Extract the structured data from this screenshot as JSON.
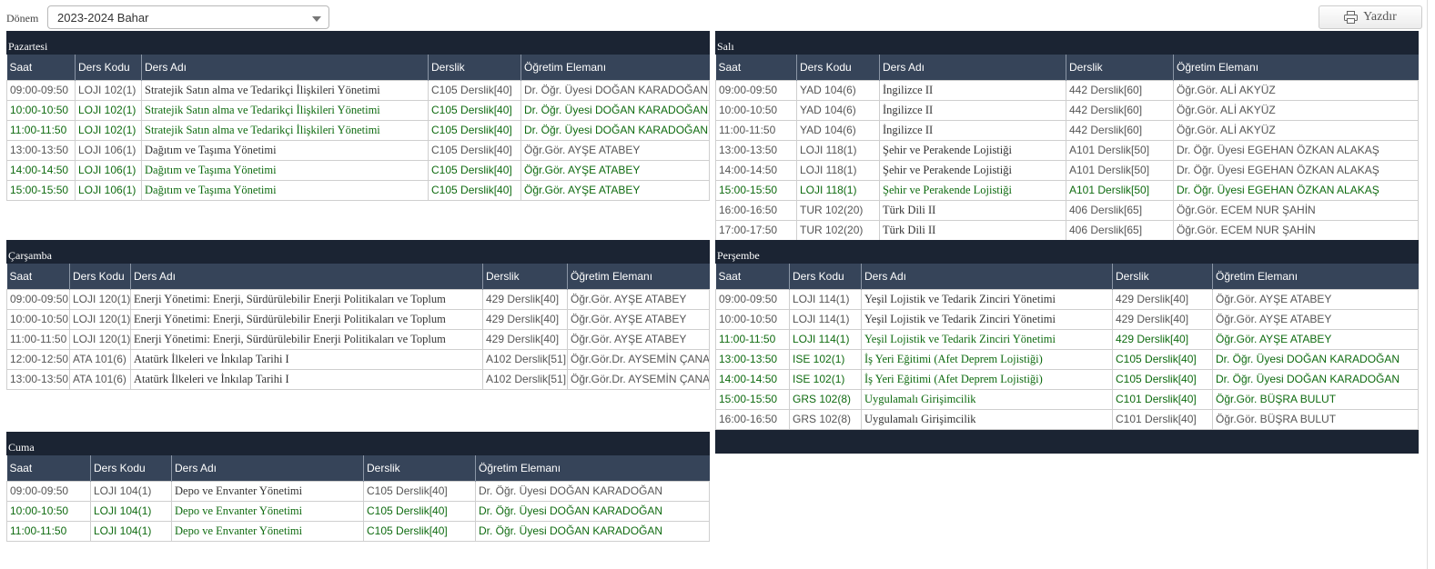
{
  "toolbar": {
    "donem_label": "Dönem",
    "donem_value": "2023-2024 Bahar",
    "print_label": "Yazdır",
    "print_icon": "printer-icon"
  },
  "columns": [
    "Saat",
    "Ders Kodu",
    "Ders Adı",
    "Derslik",
    "Öğretim Elemanı"
  ],
  "colors": {
    "header_dark": "#1b2433",
    "header": "#364459",
    "active_text": "#0f6b10"
  },
  "days": {
    "pazartesi": {
      "title": "Pazartesi",
      "rows": [
        {
          "saat": "09:00-09:50",
          "kod": "LOJI 102(1)",
          "ad": "Stratejik Satın alma ve Tedarikçi İlişkileri Yönetimi",
          "derslik": "C105 Derslik[40]",
          "ogretim": "Dr. Öğr. Üyesi DOĞAN KARADOĞAN",
          "active": false
        },
        {
          "saat": "10:00-10:50",
          "kod": "LOJI 102(1)",
          "ad": "Stratejik Satın alma ve Tedarikçi İlişkileri Yönetimi",
          "derslik": "C105 Derslik[40]",
          "ogretim": "Dr. Öğr. Üyesi DOĞAN KARADOĞAN",
          "active": true
        },
        {
          "saat": "11:00-11:50",
          "kod": "LOJI 102(1)",
          "ad": "Stratejik Satın alma ve Tedarikçi İlişkileri Yönetimi",
          "derslik": "C105 Derslik[40]",
          "ogretim": "Dr. Öğr. Üyesi DOĞAN KARADOĞAN",
          "active": true
        },
        {
          "saat": "13:00-13:50",
          "kod": "LOJI 106(1)",
          "ad": "Dağıtım ve Taşıma Yönetimi",
          "derslik": "C105 Derslik[40]",
          "ogretim": "Öğr.Gör. AYŞE ATABEY",
          "active": false
        },
        {
          "saat": "14:00-14:50",
          "kod": "LOJI 106(1)",
          "ad": "Dağıtım ve Taşıma Yönetimi",
          "derslik": "C105 Derslik[40]",
          "ogretim": "Öğr.Gör. AYŞE ATABEY",
          "active": true
        },
        {
          "saat": "15:00-15:50",
          "kod": "LOJI 106(1)",
          "ad": "Dağıtım ve Taşıma Yönetimi",
          "derslik": "C105 Derslik[40]",
          "ogretim": "Öğr.Gör. AYŞE ATABEY",
          "active": true
        }
      ]
    },
    "sali": {
      "title": "Salı",
      "rows": [
        {
          "saat": "09:00-09:50",
          "kod": "YAD 104(6)",
          "ad": "İngilizce II",
          "derslik": "442 Derslik[60]",
          "ogretim": "Öğr.Gör. ALİ AKYÜZ",
          "active": false
        },
        {
          "saat": "10:00-10:50",
          "kod": "YAD 104(6)",
          "ad": "İngilizce II",
          "derslik": "442 Derslik[60]",
          "ogretim": "Öğr.Gör. ALİ AKYÜZ",
          "active": false
        },
        {
          "saat": "11:00-11:50",
          "kod": "YAD 104(6)",
          "ad": "İngilizce II",
          "derslik": "442 Derslik[60]",
          "ogretim": "Öğr.Gör. ALİ AKYÜZ",
          "active": false
        },
        {
          "saat": "13:00-13:50",
          "kod": "LOJI 118(1)",
          "ad": "Şehir ve Perakende Lojistiği",
          "derslik": "A101 Derslik[50]",
          "ogretim": "Dr. Öğr. Üyesi EGEHAN ÖZKAN ALAKAŞ",
          "active": false
        },
        {
          "saat": "14:00-14:50",
          "kod": "LOJI 118(1)",
          "ad": "Şehir ve Perakende Lojistiği",
          "derslik": "A101 Derslik[50]",
          "ogretim": "Dr. Öğr. Üyesi EGEHAN ÖZKAN ALAKAŞ",
          "active": false
        },
        {
          "saat": "15:00-15:50",
          "kod": "LOJI 118(1)",
          "ad": "Şehir ve Perakende Lojistiği",
          "derslik": "A101 Derslik[50]",
          "ogretim": "Dr. Öğr. Üyesi EGEHAN ÖZKAN ALAKAŞ",
          "active": true
        },
        {
          "saat": "16:00-16:50",
          "kod": "TUR 102(20)",
          "ad": "Türk Dili II",
          "derslik": "406 Derslik[65]",
          "ogretim": "Öğr.Gör. ECEM NUR ŞAHİN",
          "active": false
        },
        {
          "saat": "17:00-17:50",
          "kod": "TUR 102(20)",
          "ad": "Türk Dili II",
          "derslik": "406 Derslik[65]",
          "ogretim": "Öğr.Gör. ECEM NUR ŞAHİN",
          "active": false
        }
      ]
    },
    "carsamba": {
      "title": "Çarşamba",
      "rows": [
        {
          "saat": "09:00-09:50",
          "kod": "LOJI 120(1)",
          "ad": "Enerji Yönetimi: Enerji, Sürdürülebilir Enerji Politikaları ve Toplum",
          "derslik": "429 Derslik[40]",
          "ogretim": "Öğr.Gör. AYŞE ATABEY",
          "active": false
        },
        {
          "saat": "10:00-10:50",
          "kod": "LOJI 120(1)",
          "ad": "Enerji Yönetimi: Enerji, Sürdürülebilir Enerji Politikaları ve Toplum",
          "derslik": "429 Derslik[40]",
          "ogretim": "Öğr.Gör. AYŞE ATABEY",
          "active": false
        },
        {
          "saat": "11:00-11:50",
          "kod": "LOJI 120(1)",
          "ad": "Enerji Yönetimi: Enerji, Sürdürülebilir Enerji Politikaları ve Toplum",
          "derslik": "429 Derslik[40]",
          "ogretim": "Öğr.Gör. AYŞE ATABEY",
          "active": false
        },
        {
          "saat": "12:00-12:50",
          "kod": "ATA 101(6)",
          "ad": "Atatürk İlkeleri ve İnkılap Tarihi I",
          "derslik": "A102 Derslik[51]",
          "ogretim": "Öğr.Gör.Dr. AYSEMİN ÇANAK",
          "active": false
        },
        {
          "saat": "13:00-13:50",
          "kod": "ATA 101(6)",
          "ad": "Atatürk İlkeleri ve İnkılap Tarihi I",
          "derslik": "A102 Derslik[51]",
          "ogretim": "Öğr.Gör.Dr. AYSEMİN ÇANAK",
          "active": false
        }
      ]
    },
    "persembe": {
      "title": "Perşembe",
      "rows": [
        {
          "saat": "09:00-09:50",
          "kod": "LOJI 114(1)",
          "ad": "Yeşil Lojistik ve Tedarik Zinciri Yönetimi",
          "derslik": "429 Derslik[40]",
          "ogretim": "Öğr.Gör. AYŞE ATABEY",
          "active": false
        },
        {
          "saat": "10:00-10:50",
          "kod": "LOJI 114(1)",
          "ad": "Yeşil Lojistik ve Tedarik Zinciri Yönetimi",
          "derslik": "429 Derslik[40]",
          "ogretim": "Öğr.Gör. AYŞE ATABEY",
          "active": false
        },
        {
          "saat": "11:00-11:50",
          "kod": "LOJI 114(1)",
          "ad": "Yeşil Lojistik ve Tedarik Zinciri Yönetimi",
          "derslik": "429 Derslik[40]",
          "ogretim": "Öğr.Gör. AYŞE ATABEY",
          "active": true
        },
        {
          "saat": "13:00-13:50",
          "kod": "ISE 102(1)",
          "ad": "İş Yeri Eğitimi (Afet Deprem Lojistiği)",
          "derslik": "C105 Derslik[40]",
          "ogretim": "Dr. Öğr. Üyesi DOĞAN KARADOĞAN",
          "active": true
        },
        {
          "saat": "14:00-14:50",
          "kod": "ISE 102(1)",
          "ad": "İş Yeri Eğitimi (Afet Deprem Lojistiği)",
          "derslik": "C105 Derslik[40]",
          "ogretim": "Dr. Öğr. Üyesi DOĞAN KARADOĞAN",
          "active": true
        },
        {
          "saat": "15:00-15:50",
          "kod": "GRS 102(8)",
          "ad": "Uygulamalı Girişimcilik",
          "derslik": "C101 Derslik[40]",
          "ogretim": "Öğr.Gör. BÜŞRA BULUT",
          "active": true
        },
        {
          "saat": "16:00-16:50",
          "kod": "GRS 102(8)",
          "ad": "Uygulamalı Girişimcilik",
          "derslik": "C101 Derslik[40]",
          "ogretim": "Öğr.Gör. BÜŞRA BULUT",
          "active": false
        }
      ]
    },
    "cuma": {
      "title": "Cuma",
      "rows": [
        {
          "saat": "09:00-09:50",
          "kod": "LOJI 104(1)",
          "ad": "Depo ve Envanter Yönetimi",
          "derslik": "C105 Derslik[40]",
          "ogretim": "Dr. Öğr. Üyesi DOĞAN KARADOĞAN",
          "active": false
        },
        {
          "saat": "10:00-10:50",
          "kod": "LOJI 104(1)",
          "ad": "Depo ve Envanter Yönetimi",
          "derslik": "C105 Derslik[40]",
          "ogretim": "Dr. Öğr. Üyesi DOĞAN KARADOĞAN",
          "active": true
        },
        {
          "saat": "11:00-11:50",
          "kod": "LOJI 104(1)",
          "ad": "Depo ve Envanter Yönetimi",
          "derslik": "C105 Derslik[40]",
          "ogretim": "Dr. Öğr. Üyesi DOĞAN KARADOĞAN",
          "active": true
        }
      ]
    }
  }
}
